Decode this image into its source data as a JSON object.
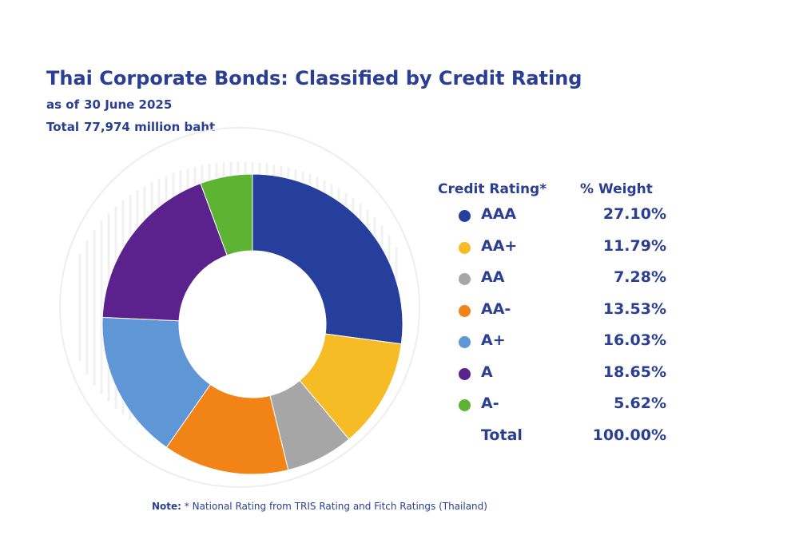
{
  "header": {
    "title": "Thai Corporate Bonds: Classified by Credit Rating",
    "as_of_label": "as of",
    "as_of_date": "30 June 2025",
    "total_label": "Total",
    "total_value": "77,974 million baht"
  },
  "legend": {
    "col1_header": "Credit Rating*",
    "col2_header": "% Weight",
    "total_label": "Total",
    "total_value": "100.00%"
  },
  "note": {
    "label": "Note:",
    "text": "* National Rating from TRIS Rating and Fitch Ratings (Thailand)"
  },
  "chart_data": {
    "type": "pie",
    "variant": "donut",
    "title": "Thai Corporate Bonds: Classified by Credit Rating",
    "unit": "%",
    "start_angle_deg": 0,
    "direction": "clockwise",
    "slices": [
      {
        "label": "AAA",
        "value": 27.1,
        "display": "27.10%",
        "color": "#263f9c"
      },
      {
        "label": "AA+",
        "value": 11.79,
        "display": "11.79%",
        "color": "#f6bc25"
      },
      {
        "label": "AA",
        "value": 7.28,
        "display": "7.28%",
        "color": "#a6a6a6"
      },
      {
        "label": "AA-",
        "value": 13.53,
        "display": "13.53%",
        "color": "#f28417"
      },
      {
        "label": "A+",
        "value": 16.03,
        "display": "16.03%",
        "color": "#5f97d6"
      },
      {
        "label": "A",
        "value": 18.65,
        "display": "18.65%",
        "color": "#5b228d"
      },
      {
        "label": "A-",
        "value": 5.62,
        "display": "5.62%",
        "color": "#5db332"
      }
    ]
  }
}
